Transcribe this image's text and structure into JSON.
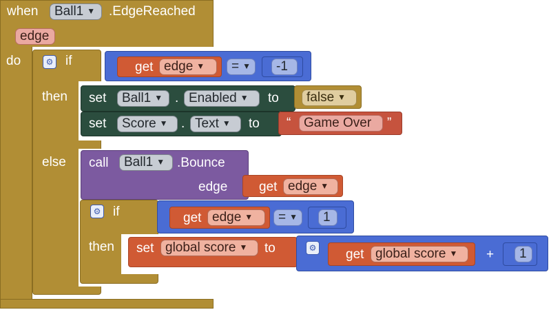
{
  "event": {
    "when": "when",
    "component": "Ball1",
    "event_name": ".EdgeReached",
    "param": "edge",
    "do": "do"
  },
  "outer_if": {
    "if": "if",
    "cond": {
      "get": "get",
      "var": "edge",
      "op": "=",
      "value": "-1"
    },
    "then": "then",
    "else": "else"
  },
  "then_block": {
    "set1": {
      "set": "set",
      "component": "Ball1",
      "dot": ".",
      "prop": "Enabled",
      "to": "to",
      "value": "false"
    },
    "set2": {
      "set": "set",
      "component": "Score",
      "dot": ".",
      "prop": "Text",
      "to": "to",
      "open_quote": "“",
      "value": "Game Over",
      "close_quote": "”"
    }
  },
  "else_block": {
    "call": "call",
    "component": "Ball1",
    "method": ".Bounce",
    "arg_label": "edge",
    "arg_get": "get",
    "arg_var": "edge"
  },
  "inner_if": {
    "if": "if",
    "cond": {
      "get": "get",
      "var": "edge",
      "op": "=",
      "value": "1"
    },
    "then": "then",
    "set": "set",
    "var": "global score",
    "to": "to",
    "expr_get": "get",
    "expr_var": "global score",
    "plus": "+",
    "expr_value": "1"
  },
  "colors": {
    "control": "#b18e35",
    "logic_compare": "#4a6cd4",
    "component_set": "#2b4d3e",
    "component_call": "#7c5aa0",
    "variable": "#d05a34",
    "text": "#c6533e"
  }
}
